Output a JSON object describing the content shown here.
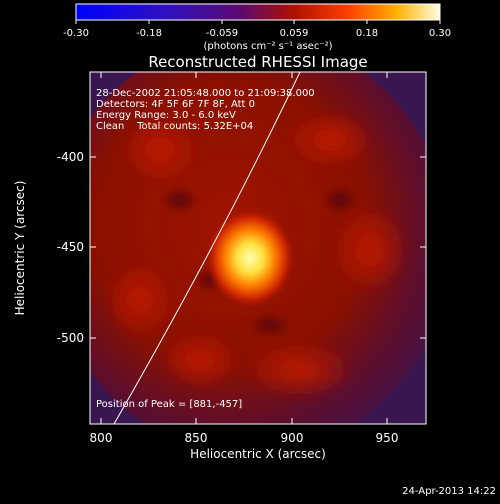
{
  "colorbar": {
    "ticks": [
      "-0.30",
      "-0.18",
      "-0.059",
      "0.059",
      "0.18",
      "0.30"
    ],
    "unit_label": "(photons cm⁻² s⁻¹ asec⁻²)"
  },
  "title": "Reconstructed RHESSI Image",
  "info": {
    "line1": "28-Dec-2002 21:05:48.000 to 21:09:38.000",
    "line2": "Detectors: 4F 5F 6F 7F 8F, Att 0",
    "line3": "Energy Range: 3.0 - 6.0 keV",
    "line4": "Clean    Total counts: 5.32E+04"
  },
  "peak_label": "Position of Peak = [881,-457]",
  "axes": {
    "xlabel": "Heliocentric X (arcsec)",
    "ylabel": "Heliocentric Y (arcsec)",
    "x_ticks": [
      "800",
      "850",
      "900",
      "950"
    ],
    "y_ticks": [
      "-400",
      "-450",
      "-500"
    ]
  },
  "timestamp": "24-Apr-2013 14:22",
  "colors": {
    "background": "#000000",
    "foreground": "#ffffff",
    "peak": "#ffff80",
    "mid": "#9a1200",
    "edge": "#4a1a5a"
  }
}
